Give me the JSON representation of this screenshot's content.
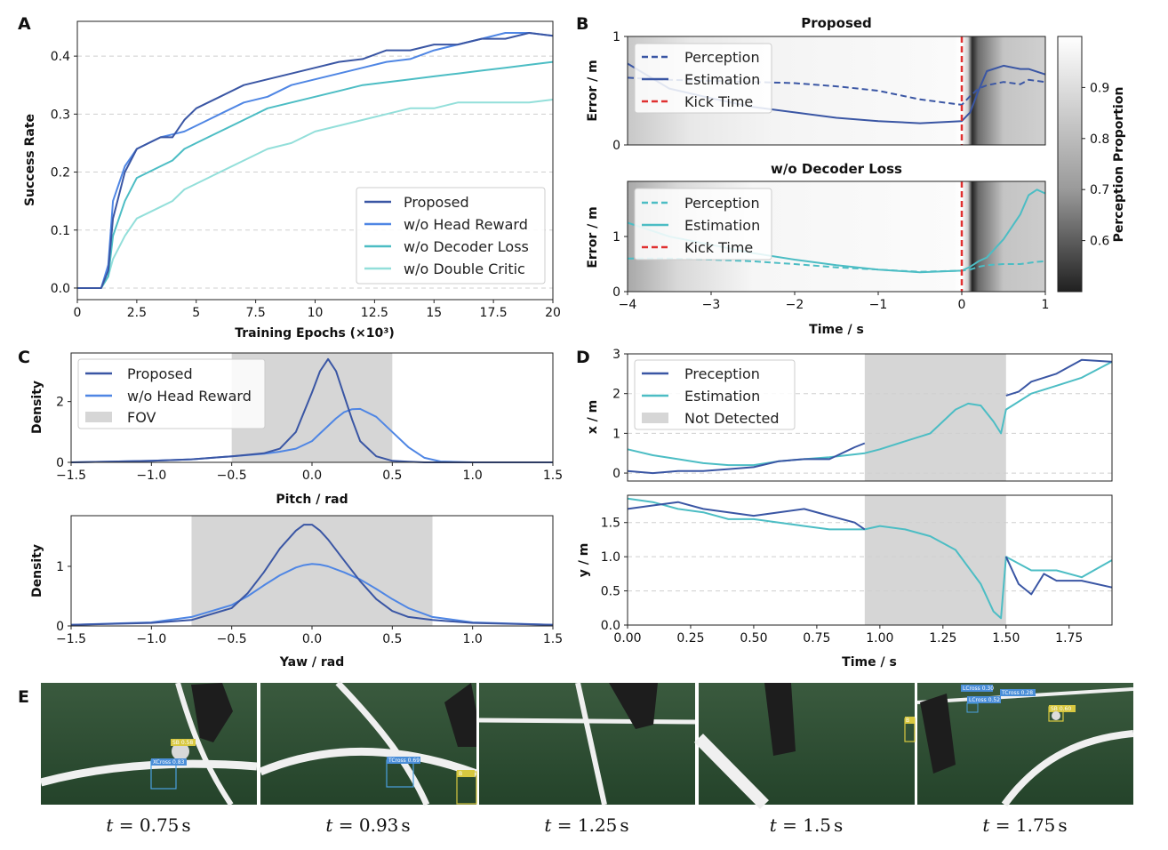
{
  "panels": {
    "A": "A",
    "B": "B",
    "C": "C",
    "D": "D",
    "E": "E"
  },
  "colors": {
    "proposed": "#3a56a4",
    "head": "#4f86e4",
    "decoder": "#4cbdc4",
    "double": "#93dfda",
    "kick": "#e03030",
    "fov": "#d6d6d6"
  },
  "chart_data": [
    {
      "id": "A",
      "type": "line",
      "title": "",
      "xlabel": "Training Epochs (×10³)",
      "ylabel": "Success Rate",
      "xlim": [
        0,
        20
      ],
      "ylim": [
        -0.02,
        0.46
      ],
      "xticks": [
        "0",
        "2.5",
        "5",
        "7.5",
        "10",
        "12.5",
        "15",
        "17.5",
        "20"
      ],
      "yticks": [
        "0.0",
        "0.1",
        "0.2",
        "0.3",
        "0.4"
      ],
      "x": [
        0,
        1,
        1.3,
        1.5,
        2,
        2.5,
        3,
        3.5,
        4,
        4.5,
        5,
        5.5,
        6,
        7,
        8,
        9,
        10,
        11,
        12,
        13,
        14,
        15,
        16,
        17,
        18,
        19,
        20
      ],
      "series": [
        {
          "name": "Proposed",
          "values": [
            0,
            0,
            0.03,
            0.12,
            0.2,
            0.24,
            0.25,
            0.26,
            0.26,
            0.29,
            0.31,
            0.32,
            0.33,
            0.35,
            0.36,
            0.37,
            0.38,
            0.39,
            0.395,
            0.41,
            0.41,
            0.42,
            0.42,
            0.43,
            0.43,
            0.44,
            0.435
          ]
        },
        {
          "name": "w/o Head Reward",
          "values": [
            0,
            0,
            0.04,
            0.15,
            0.21,
            0.24,
            0.25,
            0.26,
            0.265,
            0.27,
            0.28,
            0.29,
            0.3,
            0.32,
            0.33,
            0.35,
            0.36,
            0.37,
            0.38,
            0.39,
            0.395,
            0.41,
            0.42,
            0.43,
            0.44,
            0.44,
            0.435
          ]
        },
        {
          "name": "w/o Decoder Loss",
          "values": [
            0,
            0,
            0.02,
            0.09,
            0.15,
            0.19,
            0.2,
            0.21,
            0.22,
            0.24,
            0.25,
            0.26,
            0.27,
            0.29,
            0.31,
            0.32,
            0.33,
            0.34,
            0.35,
            0.355,
            0.36,
            0.365,
            0.37,
            0.375,
            0.38,
            0.385,
            0.39
          ]
        },
        {
          "name": "w/o Double Critic",
          "values": [
            0,
            0,
            0.02,
            0.05,
            0.09,
            0.12,
            0.13,
            0.14,
            0.15,
            0.17,
            0.18,
            0.19,
            0.2,
            0.22,
            0.24,
            0.25,
            0.27,
            0.28,
            0.29,
            0.3,
            0.31,
            0.31,
            0.32,
            0.32,
            0.32,
            0.32,
            0.325
          ]
        }
      ],
      "legend": "bottom-right",
      "grid": "y-dashed"
    },
    {
      "id": "B-top",
      "type": "line",
      "title": "Proposed",
      "xlabel": "",
      "ylabel": "Error / m",
      "xlim": [
        -4,
        1
      ],
      "ylim": [
        0,
        1
      ],
      "yticks": [
        "0",
        "1"
      ],
      "kick_time": 0,
      "x": [
        -4,
        -3.5,
        -3,
        -2.5,
        -2,
        -1.5,
        -1,
        -0.5,
        0,
        0.1,
        0.2,
        0.3,
        0.5,
        0.7,
        0.8,
        1
      ],
      "series": [
        {
          "name": "Perception",
          "style": "dashed",
          "values": [
            0.62,
            0.6,
            0.59,
            0.58,
            0.57,
            0.54,
            0.5,
            0.42,
            0.37,
            0.45,
            0.52,
            0.55,
            0.58,
            0.56,
            0.6,
            0.58
          ]
        },
        {
          "name": "Estimation",
          "style": "solid",
          "values": [
            0.75,
            0.52,
            0.43,
            0.35,
            0.3,
            0.25,
            0.22,
            0.2,
            0.22,
            0.3,
            0.5,
            0.68,
            0.73,
            0.7,
            0.7,
            0.65
          ]
        }
      ],
      "legend_kick": "Kick Time",
      "legend": "top-left"
    },
    {
      "id": "B-bottom",
      "type": "line",
      "title": "w/o Decoder Loss",
      "xlabel": "Time / s",
      "ylabel": "Error / m",
      "xlim": [
        -4,
        1
      ],
      "ylim": [
        0,
        2
      ],
      "xticks": [
        "−4",
        "−3",
        "−2",
        "−1",
        "0",
        "1"
      ],
      "yticks": [
        "0",
        "1"
      ],
      "kick_time": 0,
      "x": [
        -4,
        -3.5,
        -3,
        -2.5,
        -2,
        -1.5,
        -1,
        -0.5,
        0,
        0.1,
        0.2,
        0.3,
        0.5,
        0.7,
        0.8,
        0.9,
        1
      ],
      "series": [
        {
          "name": "Perception",
          "style": "dashed",
          "values": [
            0.6,
            0.6,
            0.58,
            0.55,
            0.5,
            0.44,
            0.4,
            0.36,
            0.38,
            0.4,
            0.45,
            0.48,
            0.5,
            0.5,
            0.52,
            0.54,
            0.55
          ]
        },
        {
          "name": "Estimation",
          "style": "solid",
          "values": [
            1.25,
            1.0,
            0.85,
            0.7,
            0.58,
            0.48,
            0.4,
            0.35,
            0.38,
            0.45,
            0.55,
            0.62,
            0.95,
            1.4,
            1.75,
            1.85,
            1.78
          ]
        }
      ],
      "legend_kick": "Kick Time",
      "legend": "top-left"
    },
    {
      "id": "B-colorbar",
      "type": "heatmap",
      "label": "Perception Proportion",
      "range": [
        0.5,
        1.0
      ],
      "ticks": [
        "0.6",
        "0.7",
        "0.8",
        "0.9"
      ]
    },
    {
      "id": "C-top",
      "type": "line",
      "xlabel": "Pitch / rad",
      "ylabel": "Density",
      "xlim": [
        -1.5,
        1.5
      ],
      "ylim": [
        0,
        3.6
      ],
      "yticks": [
        "0",
        "2"
      ],
      "xticks": [
        "−1.5",
        "−1.0",
        "−0.5",
        "0.0",
        "0.5",
        "1.0",
        "1.5"
      ],
      "fov": [
        -0.5,
        0.5
      ],
      "x": [
        -1.5,
        -1,
        -0.75,
        -0.5,
        -0.3,
        -0.2,
        -0.1,
        0,
        0.05,
        0.1,
        0.15,
        0.2,
        0.25,
        0.3,
        0.4,
        0.5,
        0.6,
        0.7,
        0.8,
        1,
        1.5
      ],
      "series": [
        {
          "name": "Proposed",
          "values": [
            0.0,
            0.05,
            0.1,
            0.2,
            0.3,
            0.45,
            1.0,
            2.3,
            3.0,
            3.4,
            3.0,
            2.2,
            1.4,
            0.7,
            0.2,
            0.05,
            0.02,
            0.0,
            0.0,
            0.0,
            0.0
          ]
        },
        {
          "name": "w/o Head Reward",
          "values": [
            0.0,
            0.05,
            0.1,
            0.2,
            0.28,
            0.35,
            0.45,
            0.7,
            0.95,
            1.2,
            1.45,
            1.65,
            1.75,
            1.76,
            1.5,
            1.0,
            0.5,
            0.15,
            0.03,
            0.0,
            0.0
          ]
        }
      ],
      "legend_fov": "FOV",
      "legend": "top-left"
    },
    {
      "id": "C-bottom",
      "type": "line",
      "xlabel": "Yaw / rad",
      "ylabel": "Density",
      "xlim": [
        -1.5,
        1.5
      ],
      "ylim": [
        0,
        1.85
      ],
      "yticks": [
        "0",
        "1"
      ],
      "xticks": [
        "−1.5",
        "−1.0",
        "−0.5",
        "0.0",
        "0.5",
        "1.0",
        "1.5"
      ],
      "fov": [
        -0.75,
        0.75
      ],
      "x": [
        -1.5,
        -1.0,
        -0.75,
        -0.5,
        -0.4,
        -0.3,
        -0.2,
        -0.1,
        -0.05,
        0,
        0.05,
        0.1,
        0.2,
        0.3,
        0.4,
        0.5,
        0.6,
        0.75,
        1.0,
        1.5
      ],
      "series": [
        {
          "name": "Proposed",
          "values": [
            0.02,
            0.05,
            0.1,
            0.3,
            0.55,
            0.9,
            1.3,
            1.6,
            1.7,
            1.7,
            1.6,
            1.45,
            1.1,
            0.75,
            0.45,
            0.25,
            0.15,
            0.1,
            0.05,
            0.02
          ]
        },
        {
          "name": "w/o Head Reward",
          "values": [
            0.02,
            0.06,
            0.15,
            0.35,
            0.5,
            0.68,
            0.85,
            0.98,
            1.02,
            1.04,
            1.03,
            1.0,
            0.9,
            0.78,
            0.62,
            0.45,
            0.3,
            0.15,
            0.06,
            0.02
          ]
        }
      ]
    },
    {
      "id": "D-top",
      "type": "line",
      "xlabel": "",
      "ylabel": "x / m",
      "xlim": [
        0,
        1.92
      ],
      "ylim": [
        -0.2,
        3.0
      ],
      "yticks": [
        "0",
        "1",
        "2",
        "3"
      ],
      "not_detected": [
        0.94,
        1.5
      ],
      "series": [
        {
          "name": "Preception",
          "x": [
            0,
            0.1,
            0.2,
            0.3,
            0.4,
            0.5,
            0.6,
            0.7,
            0.8,
            0.9,
            0.94,
            null,
            1.5,
            1.55,
            1.6,
            1.7,
            1.8,
            1.92
          ],
          "values": [
            0.05,
            0.0,
            0.05,
            0.05,
            0.1,
            0.15,
            0.3,
            0.35,
            0.35,
            0.65,
            0.75,
            null,
            1.95,
            2.05,
            2.3,
            2.5,
            2.85,
            2.8
          ]
        },
        {
          "name": "Estimation",
          "x": [
            0,
            0.1,
            0.2,
            0.3,
            0.4,
            0.5,
            0.6,
            0.7,
            0.8,
            0.94,
            1.0,
            1.1,
            1.2,
            1.3,
            1.35,
            1.4,
            1.45,
            1.48,
            1.5,
            1.6,
            1.7,
            1.8,
            1.92
          ],
          "values": [
            0.6,
            0.45,
            0.35,
            0.25,
            0.2,
            0.2,
            0.3,
            0.35,
            0.4,
            0.5,
            0.6,
            0.8,
            1.0,
            1.6,
            1.75,
            1.7,
            1.3,
            1.0,
            1.6,
            2.0,
            2.2,
            2.4,
            2.8
          ]
        }
      ],
      "legend_nd": "Not Detected",
      "legend": "top-left"
    },
    {
      "id": "D-bottom",
      "type": "line",
      "xlabel": "Time / s",
      "ylabel": "y / m",
      "xlim": [
        0,
        1.92
      ],
      "ylim": [
        0,
        1.9
      ],
      "xticks": [
        "0.00",
        "0.25",
        "0.50",
        "0.75",
        "1.00",
        "1.25",
        "1.50",
        "1.75"
      ],
      "yticks": [
        "0.0",
        "0.5",
        "1.0",
        "1.5"
      ],
      "not_detected": [
        0.94,
        1.5
      ],
      "series": [
        {
          "name": "Preception",
          "x": [
            0,
            0.1,
            0.2,
            0.3,
            0.4,
            0.5,
            0.6,
            0.7,
            0.8,
            0.9,
            0.94,
            null,
            1.5,
            1.55,
            1.6,
            1.65,
            1.7,
            1.8,
            1.92
          ],
          "values": [
            1.7,
            1.75,
            1.8,
            1.7,
            1.65,
            1.6,
            1.65,
            1.7,
            1.6,
            1.5,
            1.4,
            null,
            1.0,
            0.6,
            0.45,
            0.75,
            0.65,
            0.65,
            0.55
          ]
        },
        {
          "name": "Estimation",
          "x": [
            0,
            0.1,
            0.2,
            0.3,
            0.4,
            0.5,
            0.6,
            0.7,
            0.8,
            0.94,
            1.0,
            1.1,
            1.2,
            1.3,
            1.4,
            1.45,
            1.48,
            1.5,
            1.6,
            1.7,
            1.8,
            1.92
          ],
          "values": [
            1.85,
            1.8,
            1.7,
            1.65,
            1.55,
            1.55,
            1.5,
            1.45,
            1.4,
            1.4,
            1.45,
            1.4,
            1.3,
            1.1,
            0.6,
            0.2,
            0.1,
            1.0,
            0.8,
            0.8,
            0.7,
            0.95
          ]
        }
      ]
    }
  ],
  "figE": {
    "frames": [
      {
        "caption": "t = 0.75 s",
        "t": "t",
        "eq": " = ",
        "val": "0.75",
        "unit": "s",
        "dets": [
          "XCross 0.83",
          "SB 0.58"
        ]
      },
      {
        "caption": "t = 0.93 s",
        "t": "t",
        "eq": " = ",
        "val": "0.93",
        "unit": "s",
        "dets": [
          "TCross 0.69",
          "B"
        ]
      },
      {
        "caption": "t = 1.25 s",
        "t": "t",
        "eq": " = ",
        "val": "1.25",
        "unit": "s",
        "dets": []
      },
      {
        "caption": "t = 1.5 s",
        "t": "t",
        "eq": " = ",
        "val": "1.5",
        "unit": "s",
        "dets": [
          "B"
        ]
      },
      {
        "caption": "t = 1.75 s",
        "t": "t",
        "eq": " = ",
        "val": "1.75",
        "unit": "s",
        "dets": [
          "LCross 0.30",
          "TCross 0.28",
          "LCross 0.52",
          "SB 0.60"
        ]
      }
    ]
  }
}
